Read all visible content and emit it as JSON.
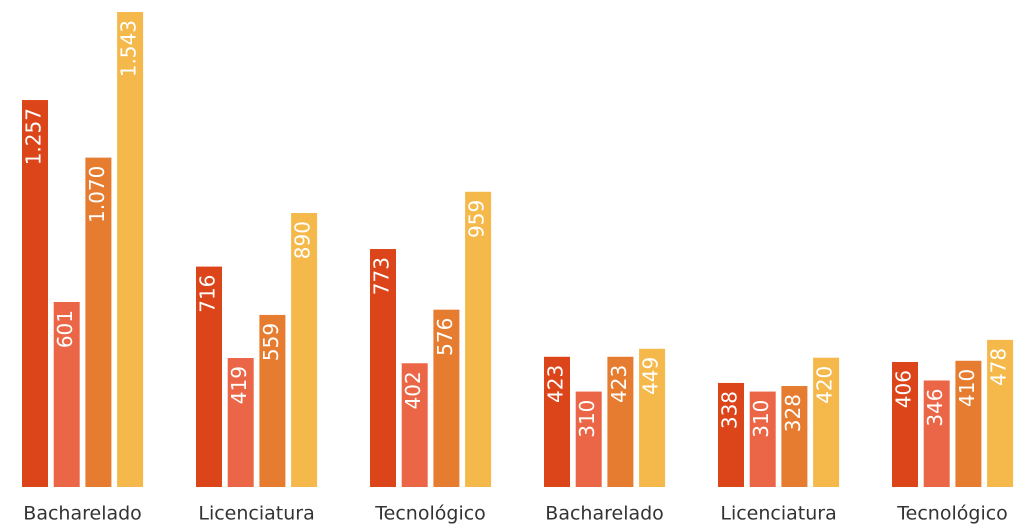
{
  "chart_data": {
    "type": "bar",
    "categories": [
      "Bacharelado",
      "Licenciatura",
      "Tecnológico",
      "Bacharelado",
      "Licenciatura",
      "Tecnológico"
    ],
    "series": [
      {
        "color": "#dc4419",
        "values": [
          1257,
          716,
          773,
          423,
          338,
          406
        ],
        "value_labels": [
          "1.257",
          "716",
          "773",
          "423",
          "338",
          "406"
        ]
      },
      {
        "color": "#eb6647",
        "values": [
          601,
          419,
          402,
          310,
          310,
          346
        ],
        "value_labels": [
          "601",
          "419",
          "402",
          "310",
          "310",
          "346"
        ]
      },
      {
        "color": "#e57c30",
        "values": [
          1070,
          559,
          576,
          423,
          328,
          410
        ],
        "value_labels": [
          "1.070",
          "559",
          "576",
          "423",
          "328",
          "410"
        ]
      },
      {
        "color": "#f4b94a",
        "values": [
          1543,
          890,
          959,
          449,
          420,
          478
        ],
        "value_labels": [
          "1.543",
          "890",
          "959",
          "449",
          "420",
          "478"
        ]
      }
    ]
  }
}
